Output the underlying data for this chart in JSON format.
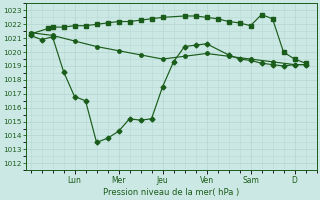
{
  "bg_color": "#cce8e4",
  "grid_color": "#b8d8d4",
  "line_color": "#1a5c1a",
  "ylabel": "Pression niveau de la mer( hPa )",
  "ylim": [
    1011.5,
    1023.5
  ],
  "yticks": [
    1012,
    1013,
    1014,
    1015,
    1016,
    1017,
    1018,
    1019,
    1020,
    1021,
    1022,
    1023
  ],
  "day_labels": [
    "Lun",
    "Mer",
    "Jeu",
    "Ven",
    "Sam",
    "D"
  ],
  "day_positions": [
    2.0,
    4.0,
    6.0,
    8.0,
    10.0,
    12.0
  ],
  "xlim": [
    -0.2,
    13.0
  ],
  "s1x": [
    0.0,
    0.8,
    1.0,
    1.5,
    2.0,
    2.5,
    3.0,
    3.5,
    4.0,
    4.5,
    5.0,
    5.5,
    6.0,
    7.0,
    7.5,
    8.0,
    8.5,
    9.0,
    9.5,
    10.0,
    10.5,
    11.0,
    11.5,
    12.0,
    12.5
  ],
  "s1y": [
    1021.3,
    1021.7,
    1021.8,
    1021.8,
    1021.9,
    1021.9,
    1022.0,
    1022.1,
    1022.2,
    1022.2,
    1022.3,
    1022.4,
    1022.5,
    1022.6,
    1022.6,
    1022.5,
    1022.4,
    1022.2,
    1022.1,
    1021.9,
    1022.7,
    1022.4,
    1020.0,
    1019.5,
    1019.2
  ],
  "s2x": [
    0.0,
    0.5,
    1.0,
    1.5,
    2.0,
    2.5,
    3.0,
    3.5,
    4.0,
    4.5,
    5.0,
    5.5,
    6.0,
    6.5,
    7.0,
    7.5,
    8.0,
    9.0,
    9.5,
    10.0,
    10.5,
    11.0,
    11.5,
    12.0,
    12.5
  ],
  "s2y": [
    1021.2,
    1020.9,
    1021.1,
    1018.6,
    1016.8,
    1016.5,
    1013.5,
    1013.8,
    1014.3,
    1015.2,
    1015.1,
    1015.2,
    1017.5,
    1019.3,
    1020.4,
    1020.5,
    1020.6,
    1019.8,
    1019.5,
    1019.4,
    1019.2,
    1019.1,
    1019.0,
    1019.1,
    1019.1
  ],
  "s3x": [
    0.0,
    1.0,
    2.0,
    3.0,
    4.0,
    5.0,
    6.0,
    7.0,
    8.0,
    9.0,
    10.0,
    11.0,
    12.0,
    12.5
  ],
  "s3y": [
    1021.4,
    1021.2,
    1020.8,
    1020.4,
    1020.1,
    1019.8,
    1019.5,
    1019.7,
    1019.9,
    1019.7,
    1019.5,
    1019.3,
    1019.1,
    1019.1
  ]
}
